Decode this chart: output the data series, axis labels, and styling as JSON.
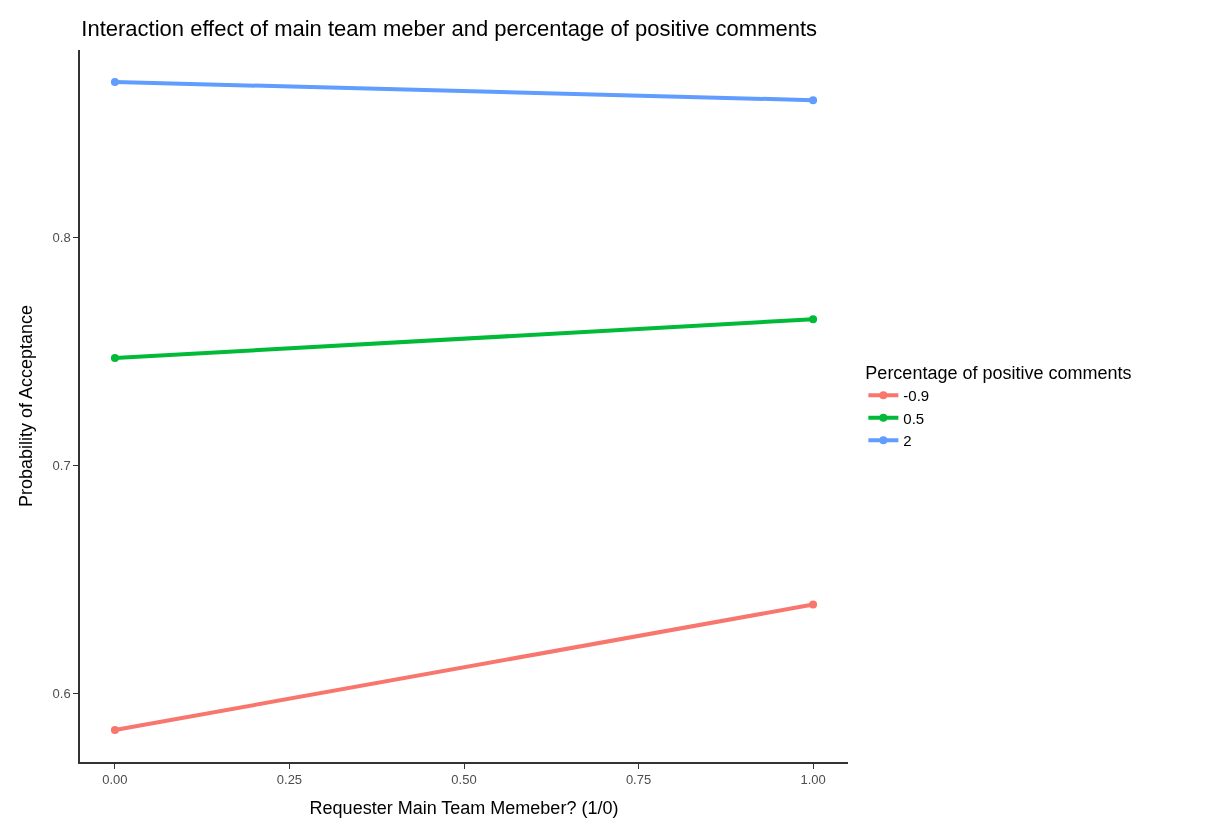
{
  "chart_data": {
    "type": "line",
    "title": "Interaction effect of main team meber and percentage of positive comments",
    "xlabel": "Requester Main Team Memeber? (1/0)",
    "ylabel": "Probability of Acceptance",
    "legend_title": "Percentage of positive comments",
    "x": [
      0,
      1
    ],
    "series": [
      {
        "name": "-0.9",
        "color": "#f8766d",
        "values": [
          0.584,
          0.639
        ]
      },
      {
        "name": "0.5",
        "color": "#00ba38",
        "values": [
          0.747,
          0.764
        ]
      },
      {
        "name": "2",
        "color": "#619cff",
        "values": [
          0.868,
          0.86
        ]
      }
    ],
    "xlim": [
      -0.05,
      1.05
    ],
    "xticks": [
      {
        "value": 0,
        "label": "0.00"
      },
      {
        "value": 0.25,
        "label": "0.25"
      },
      {
        "value": 0.5,
        "label": "0.50"
      },
      {
        "value": 0.75,
        "label": "0.75"
      },
      {
        "value": 1,
        "label": "1.00"
      }
    ],
    "ylim": [
      0.57,
      0.882
    ],
    "yticks": [
      0.6,
      0.7,
      0.8
    ],
    "legend": "right",
    "marker": "circle",
    "line_style": "solid"
  }
}
